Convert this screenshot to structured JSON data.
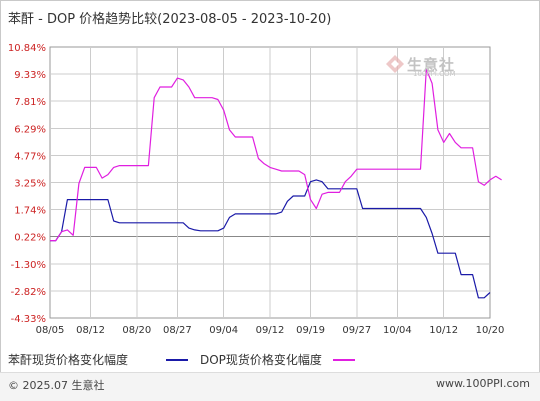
{
  "title": "苯酐 - DOP 价格趋势比较(2023-08-05 - 2023-10-20)",
  "watermark": {
    "text": "生意社",
    "sub": "100PPI.COM"
  },
  "footer": {
    "copyright": "© 2025.07 生意社",
    "site": "www.100PPI.com"
  },
  "colors": {
    "series1": "#1a1aa8",
    "series2": "#e01fe0",
    "zero_line": "#888888",
    "grid": "#cccccc"
  },
  "chart_data": {
    "type": "line",
    "title": "苯酐 - DOP 价格趋势比较(2023-08-05 - 2023-10-20)",
    "ylabel": "",
    "xlabel": "",
    "ylim": [
      -4.33,
      10.84
    ],
    "y_ticks": [
      "10.84%",
      "9.33%",
      "7.81%",
      "6.29%",
      "4.77%",
      "3.25%",
      "1.74%",
      "0.22%",
      "-1.30%",
      "-2.82%",
      "-4.33%"
    ],
    "y_tick_values": [
      10.84,
      9.33,
      7.81,
      6.29,
      4.77,
      3.25,
      1.74,
      0.22,
      -1.3,
      -2.82,
      -4.33
    ],
    "x_ticks": [
      "08/05",
      "08/12",
      "08/20",
      "08/27",
      "09/04",
      "09/12",
      "09/19",
      "09/27",
      "10/04",
      "10/12",
      "10/20"
    ],
    "x_tick_days": [
      0,
      7,
      15,
      22,
      30,
      38,
      45,
      53,
      60,
      68,
      76
    ],
    "x_range_days": [
      0,
      76
    ],
    "grid": true,
    "legend_position": "bottom-left",
    "series": [
      {
        "name": "苯酐现货价格变化幅度",
        "color": "#1a1aa8",
        "points": [
          [
            0,
            0.0
          ],
          [
            1,
            0.0
          ],
          [
            2,
            0.5
          ],
          [
            3,
            2.3
          ],
          [
            4,
            2.3
          ],
          [
            5,
            2.3
          ],
          [
            6,
            2.3
          ],
          [
            7,
            2.3
          ],
          [
            8,
            2.3
          ],
          [
            9,
            2.3
          ],
          [
            10,
            2.3
          ],
          [
            11,
            1.1
          ],
          [
            12,
            1.0
          ],
          [
            13,
            1.0
          ],
          [
            14,
            1.0
          ],
          [
            15,
            1.0
          ],
          [
            16,
            1.0
          ],
          [
            17,
            1.0
          ],
          [
            18,
            1.0
          ],
          [
            19,
            1.0
          ],
          [
            20,
            1.0
          ],
          [
            21,
            1.0
          ],
          [
            22,
            1.0
          ],
          [
            23,
            1.0
          ],
          [
            24,
            0.7
          ],
          [
            25,
            0.6
          ],
          [
            26,
            0.55
          ],
          [
            27,
            0.55
          ],
          [
            28,
            0.55
          ],
          [
            29,
            0.55
          ],
          [
            30,
            0.7
          ],
          [
            31,
            1.3
          ],
          [
            32,
            1.5
          ],
          [
            33,
            1.5
          ],
          [
            34,
            1.5
          ],
          [
            35,
            1.5
          ],
          [
            36,
            1.5
          ],
          [
            37,
            1.5
          ],
          [
            38,
            1.5
          ],
          [
            39,
            1.5
          ],
          [
            40,
            1.6
          ],
          [
            41,
            2.2
          ],
          [
            42,
            2.5
          ],
          [
            43,
            2.5
          ],
          [
            44,
            2.5
          ],
          [
            45,
            3.3
          ],
          [
            46,
            3.4
          ],
          [
            47,
            3.3
          ],
          [
            48,
            2.9
          ],
          [
            49,
            2.9
          ],
          [
            50,
            2.9
          ],
          [
            51,
            2.9
          ],
          [
            52,
            2.9
          ],
          [
            53,
            2.9
          ],
          [
            54,
            1.8
          ],
          [
            55,
            1.8
          ],
          [
            56,
            1.8
          ],
          [
            57,
            1.8
          ],
          [
            58,
            1.8
          ],
          [
            59,
            1.8
          ],
          [
            60,
            1.8
          ],
          [
            61,
            1.8
          ],
          [
            62,
            1.8
          ],
          [
            63,
            1.8
          ],
          [
            64,
            1.8
          ],
          [
            65,
            1.3
          ],
          [
            66,
            0.4
          ],
          [
            67,
            -0.7
          ],
          [
            68,
            -0.7
          ],
          [
            69,
            -0.7
          ],
          [
            70,
            -0.7
          ],
          [
            71,
            -1.9
          ],
          [
            72,
            -1.9
          ],
          [
            73,
            -1.9
          ],
          [
            74,
            -3.2
          ],
          [
            75,
            -3.2
          ],
          [
            76,
            -2.9
          ]
        ]
      },
      {
        "name": "DOP现货价格变化幅度",
        "color": "#e01fe0",
        "points": [
          [
            0,
            0.0
          ],
          [
            1,
            0.0
          ],
          [
            2,
            0.5
          ],
          [
            3,
            0.6
          ],
          [
            4,
            0.3
          ],
          [
            5,
            3.2
          ],
          [
            6,
            4.1
          ],
          [
            7,
            4.1
          ],
          [
            8,
            4.1
          ],
          [
            9,
            3.5
          ],
          [
            10,
            3.7
          ],
          [
            11,
            4.1
          ],
          [
            12,
            4.2
          ],
          [
            13,
            4.2
          ],
          [
            14,
            4.2
          ],
          [
            15,
            4.2
          ],
          [
            16,
            4.2
          ],
          [
            17,
            4.2
          ],
          [
            18,
            8.0
          ],
          [
            19,
            8.6
          ],
          [
            20,
            8.6
          ],
          [
            21,
            8.6
          ],
          [
            22,
            9.1
          ],
          [
            23,
            9.0
          ],
          [
            24,
            8.6
          ],
          [
            25,
            8.0
          ],
          [
            26,
            8.0
          ],
          [
            27,
            8.0
          ],
          [
            28,
            8.0
          ],
          [
            29,
            7.9
          ],
          [
            30,
            7.3
          ],
          [
            31,
            6.2
          ],
          [
            32,
            5.8
          ],
          [
            33,
            5.8
          ],
          [
            34,
            5.8
          ],
          [
            35,
            5.8
          ],
          [
            36,
            4.6
          ],
          [
            37,
            4.3
          ],
          [
            38,
            4.1
          ],
          [
            39,
            4.0
          ],
          [
            40,
            3.9
          ],
          [
            41,
            3.9
          ],
          [
            42,
            3.9
          ],
          [
            43,
            3.9
          ],
          [
            44,
            3.7
          ],
          [
            45,
            2.3
          ],
          [
            46,
            1.8
          ],
          [
            47,
            2.6
          ],
          [
            48,
            2.7
          ],
          [
            49,
            2.7
          ],
          [
            50,
            2.7
          ],
          [
            51,
            3.3
          ],
          [
            52,
            3.6
          ],
          [
            53,
            4.0
          ],
          [
            54,
            4.0
          ],
          [
            55,
            4.0
          ],
          [
            56,
            4.0
          ],
          [
            57,
            4.0
          ],
          [
            58,
            4.0
          ],
          [
            59,
            4.0
          ],
          [
            60,
            4.0
          ],
          [
            61,
            4.0
          ],
          [
            62,
            4.0
          ],
          [
            63,
            4.0
          ],
          [
            64,
            4.0
          ],
          [
            65,
            9.6
          ],
          [
            66,
            8.8
          ],
          [
            67,
            6.2
          ],
          [
            68,
            5.5
          ],
          [
            69,
            6.0
          ],
          [
            70,
            5.5
          ],
          [
            71,
            5.2
          ],
          [
            72,
            5.2
          ],
          [
            73,
            5.2
          ],
          [
            74,
            3.3
          ],
          [
            75,
            3.1
          ],
          [
            76,
            3.4
          ],
          [
            77,
            3.6
          ],
          [
            78,
            3.4
          ]
        ]
      }
    ]
  }
}
